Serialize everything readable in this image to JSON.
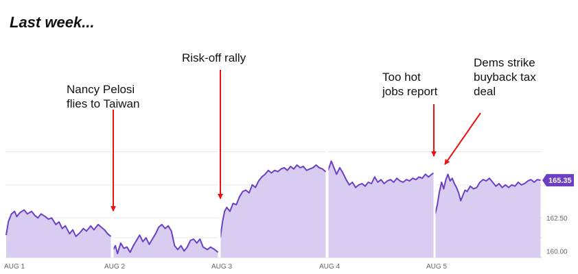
{
  "header": {
    "title": "Last week..."
  },
  "colors": {
    "line": "#6a3fc4",
    "fill": "#d8cdf1",
    "arrow": "#ee1111",
    "grid": "#e7e7e7",
    "badge": "#6a3fc4"
  },
  "chart_data": {
    "type": "area",
    "title": "Last week...",
    "xlabel": "",
    "ylabel": "",
    "x_tick_labels": [
      "AUG 1",
      "AUG 2",
      "AUG 3",
      "AUG 4",
      "AUG 5"
    ],
    "y_tick_labels": [
      "160.00",
      "162.50"
    ],
    "ylim": [
      159.5,
      168.0
    ],
    "grid": true,
    "last_value_label": "165.35",
    "series": [
      {
        "sessions": [
          {
            "day": "AUG 1",
            "points": [
              [
                0.0,
                161.2
              ],
              [
                0.02,
                162.2
              ],
              [
                0.05,
                162.8
              ],
              [
                0.08,
                163.0
              ],
              [
                0.1,
                162.6
              ],
              [
                0.13,
                162.9
              ],
              [
                0.17,
                163.1
              ],
              [
                0.2,
                162.8
              ],
              [
                0.24,
                163.0
              ],
              [
                0.27,
                162.7
              ],
              [
                0.3,
                162.5
              ],
              [
                0.33,
                162.8
              ],
              [
                0.37,
                162.6
              ],
              [
                0.4,
                162.4
              ],
              [
                0.43,
                162.5
              ],
              [
                0.47,
                162.0
              ],
              [
                0.5,
                162.2
              ],
              [
                0.53,
                161.7
              ],
              [
                0.56,
                161.9
              ],
              [
                0.6,
                161.3
              ],
              [
                0.63,
                161.6
              ],
              [
                0.66,
                161.1
              ],
              [
                0.7,
                161.4
              ],
              [
                0.73,
                161.7
              ],
              [
                0.76,
                161.5
              ],
              [
                0.8,
                161.9
              ],
              [
                0.83,
                161.6
              ],
              [
                0.87,
                162.0
              ],
              [
                0.9,
                161.8
              ],
              [
                0.93,
                161.6
              ],
              [
                0.96,
                161.3
              ],
              [
                0.99,
                161.1
              ]
            ]
          },
          {
            "day": "AUG 2",
            "points": [
              [
                0.0,
                160.1
              ],
              [
                0.02,
                160.4
              ],
              [
                0.04,
                159.8
              ],
              [
                0.07,
                160.6
              ],
              [
                0.1,
                160.2
              ],
              [
                0.13,
                160.3
              ],
              [
                0.16,
                159.9
              ],
              [
                0.19,
                160.4
              ],
              [
                0.22,
                160.8
              ],
              [
                0.25,
                161.2
              ],
              [
                0.28,
                160.7
              ],
              [
                0.31,
                161.0
              ],
              [
                0.34,
                160.5
              ],
              [
                0.37,
                160.9
              ],
              [
                0.4,
                161.3
              ],
              [
                0.43,
                161.8
              ],
              [
                0.46,
                162.0
              ],
              [
                0.49,
                161.7
              ],
              [
                0.52,
                161.9
              ],
              [
                0.55,
                161.5
              ],
              [
                0.58,
                160.4
              ],
              [
                0.61,
                160.1
              ],
              [
                0.64,
                160.4
              ],
              [
                0.67,
                160.0
              ],
              [
                0.7,
                160.3
              ],
              [
                0.73,
                160.8
              ],
              [
                0.76,
                160.9
              ],
              [
                0.79,
                160.6
              ],
              [
                0.82,
                160.9
              ],
              [
                0.85,
                160.3
              ],
              [
                0.89,
                160.1
              ],
              [
                0.92,
                160.3
              ],
              [
                0.96,
                160.1
              ],
              [
                0.99,
                159.9
              ]
            ]
          },
          {
            "day": "AUG 3",
            "points": [
              [
                0.0,
                161.0
              ],
              [
                0.02,
                162.2
              ],
              [
                0.04,
                163.0
              ],
              [
                0.06,
                163.3
              ],
              [
                0.09,
                163.0
              ],
              [
                0.12,
                163.6
              ],
              [
                0.15,
                163.5
              ],
              [
                0.18,
                164.1
              ],
              [
                0.21,
                164.5
              ],
              [
                0.24,
                164.6
              ],
              [
                0.27,
                164.4
              ],
              [
                0.3,
                165.0
              ],
              [
                0.33,
                164.8
              ],
              [
                0.36,
                165.3
              ],
              [
                0.39,
                165.6
              ],
              [
                0.42,
                165.8
              ],
              [
                0.45,
                166.1
              ],
              [
                0.48,
                165.9
              ],
              [
                0.51,
                166.1
              ],
              [
                0.54,
                166.0
              ],
              [
                0.57,
                166.2
              ],
              [
                0.6,
                166.3
              ],
              [
                0.63,
                166.1
              ],
              [
                0.66,
                166.4
              ],
              [
                0.69,
                166.2
              ],
              [
                0.72,
                166.5
              ],
              [
                0.75,
                166.3
              ],
              [
                0.78,
                166.4
              ],
              [
                0.81,
                166.1
              ],
              [
                0.84,
                166.2
              ],
              [
                0.87,
                166.3
              ],
              [
                0.9,
                166.5
              ],
              [
                0.93,
                166.3
              ],
              [
                0.96,
                166.2
              ],
              [
                0.99,
                166.0
              ]
            ]
          },
          {
            "day": "AUG 4",
            "points": [
              [
                0.0,
                166.1
              ],
              [
                0.03,
                166.8
              ],
              [
                0.05,
                166.4
              ],
              [
                0.08,
                165.8
              ],
              [
                0.11,
                166.3
              ],
              [
                0.14,
                165.9
              ],
              [
                0.17,
                165.4
              ],
              [
                0.2,
                165.0
              ],
              [
                0.23,
                165.2
              ],
              [
                0.26,
                164.8
              ],
              [
                0.29,
                165.0
              ],
              [
                0.32,
                165.1
              ],
              [
                0.35,
                164.9
              ],
              [
                0.38,
                165.2
              ],
              [
                0.41,
                165.1
              ],
              [
                0.44,
                165.6
              ],
              [
                0.47,
                165.2
              ],
              [
                0.5,
                165.4
              ],
              [
                0.53,
                165.1
              ],
              [
                0.56,
                165.3
              ],
              [
                0.59,
                165.4
              ],
              [
                0.62,
                165.2
              ],
              [
                0.65,
                165.5
              ],
              [
                0.68,
                165.3
              ],
              [
                0.71,
                165.2
              ],
              [
                0.74,
                165.4
              ],
              [
                0.77,
                165.3
              ],
              [
                0.8,
                165.5
              ],
              [
                0.83,
                165.4
              ],
              [
                0.86,
                165.6
              ],
              [
                0.89,
                165.5
              ],
              [
                0.92,
                165.8
              ],
              [
                0.95,
                165.6
              ],
              [
                0.98,
                165.8
              ],
              [
                1.0,
                165.9
              ]
            ]
          },
          {
            "day": "AUG 5",
            "points": [
              [
                0.0,
                162.8
              ],
              [
                0.02,
                163.5
              ],
              [
                0.04,
                164.5
              ],
              [
                0.06,
                165.2
              ],
              [
                0.08,
                164.7
              ],
              [
                0.1,
                165.4
              ],
              [
                0.12,
                165.8
              ],
              [
                0.14,
                165.3
              ],
              [
                0.16,
                165.5
              ],
              [
                0.18,
                165.1
              ],
              [
                0.2,
                164.8
              ],
              [
                0.22,
                164.4
              ],
              [
                0.24,
                163.8
              ],
              [
                0.26,
                164.2
              ],
              [
                0.28,
                164.6
              ],
              [
                0.3,
                164.5
              ],
              [
                0.33,
                164.9
              ],
              [
                0.36,
                164.7
              ],
              [
                0.39,
                164.8
              ],
              [
                0.42,
                165.2
              ],
              [
                0.45,
                165.4
              ],
              [
                0.48,
                165.3
              ],
              [
                0.51,
                165.5
              ],
              [
                0.54,
                165.2
              ],
              [
                0.57,
                164.9
              ],
              [
                0.6,
                165.1
              ],
              [
                0.63,
                164.8
              ],
              [
                0.66,
                165.0
              ],
              [
                0.69,
                164.8
              ],
              [
                0.72,
                165.0
              ],
              [
                0.75,
                164.9
              ],
              [
                0.78,
                165.2
              ],
              [
                0.81,
                165.0
              ],
              [
                0.84,
                165.1
              ],
              [
                0.87,
                165.3
              ],
              [
                0.9,
                165.4
              ],
              [
                0.93,
                165.2
              ],
              [
                0.96,
                165.4
              ],
              [
                0.99,
                165.35
              ]
            ]
          }
        ]
      }
    ],
    "annotations": [
      {
        "lines": [
          "Nancy Pelosi",
          "flies to Taiwan"
        ],
        "day": 1,
        "frac": 0.0,
        "value": 162.3
      },
      {
        "lines": [
          "Risk-off rally"
        ],
        "day": 2,
        "frac": 0.0,
        "value": 163.6
      },
      {
        "lines": [
          "Too hot",
          "jobs report"
        ],
        "day": 4,
        "frac": 0.0,
        "value": 166.2
      },
      {
        "lines": [
          "Dems strike",
          "buyback tax",
          "deal"
        ],
        "day": 4,
        "frac": 0.12,
        "value": 166.0
      }
    ]
  }
}
